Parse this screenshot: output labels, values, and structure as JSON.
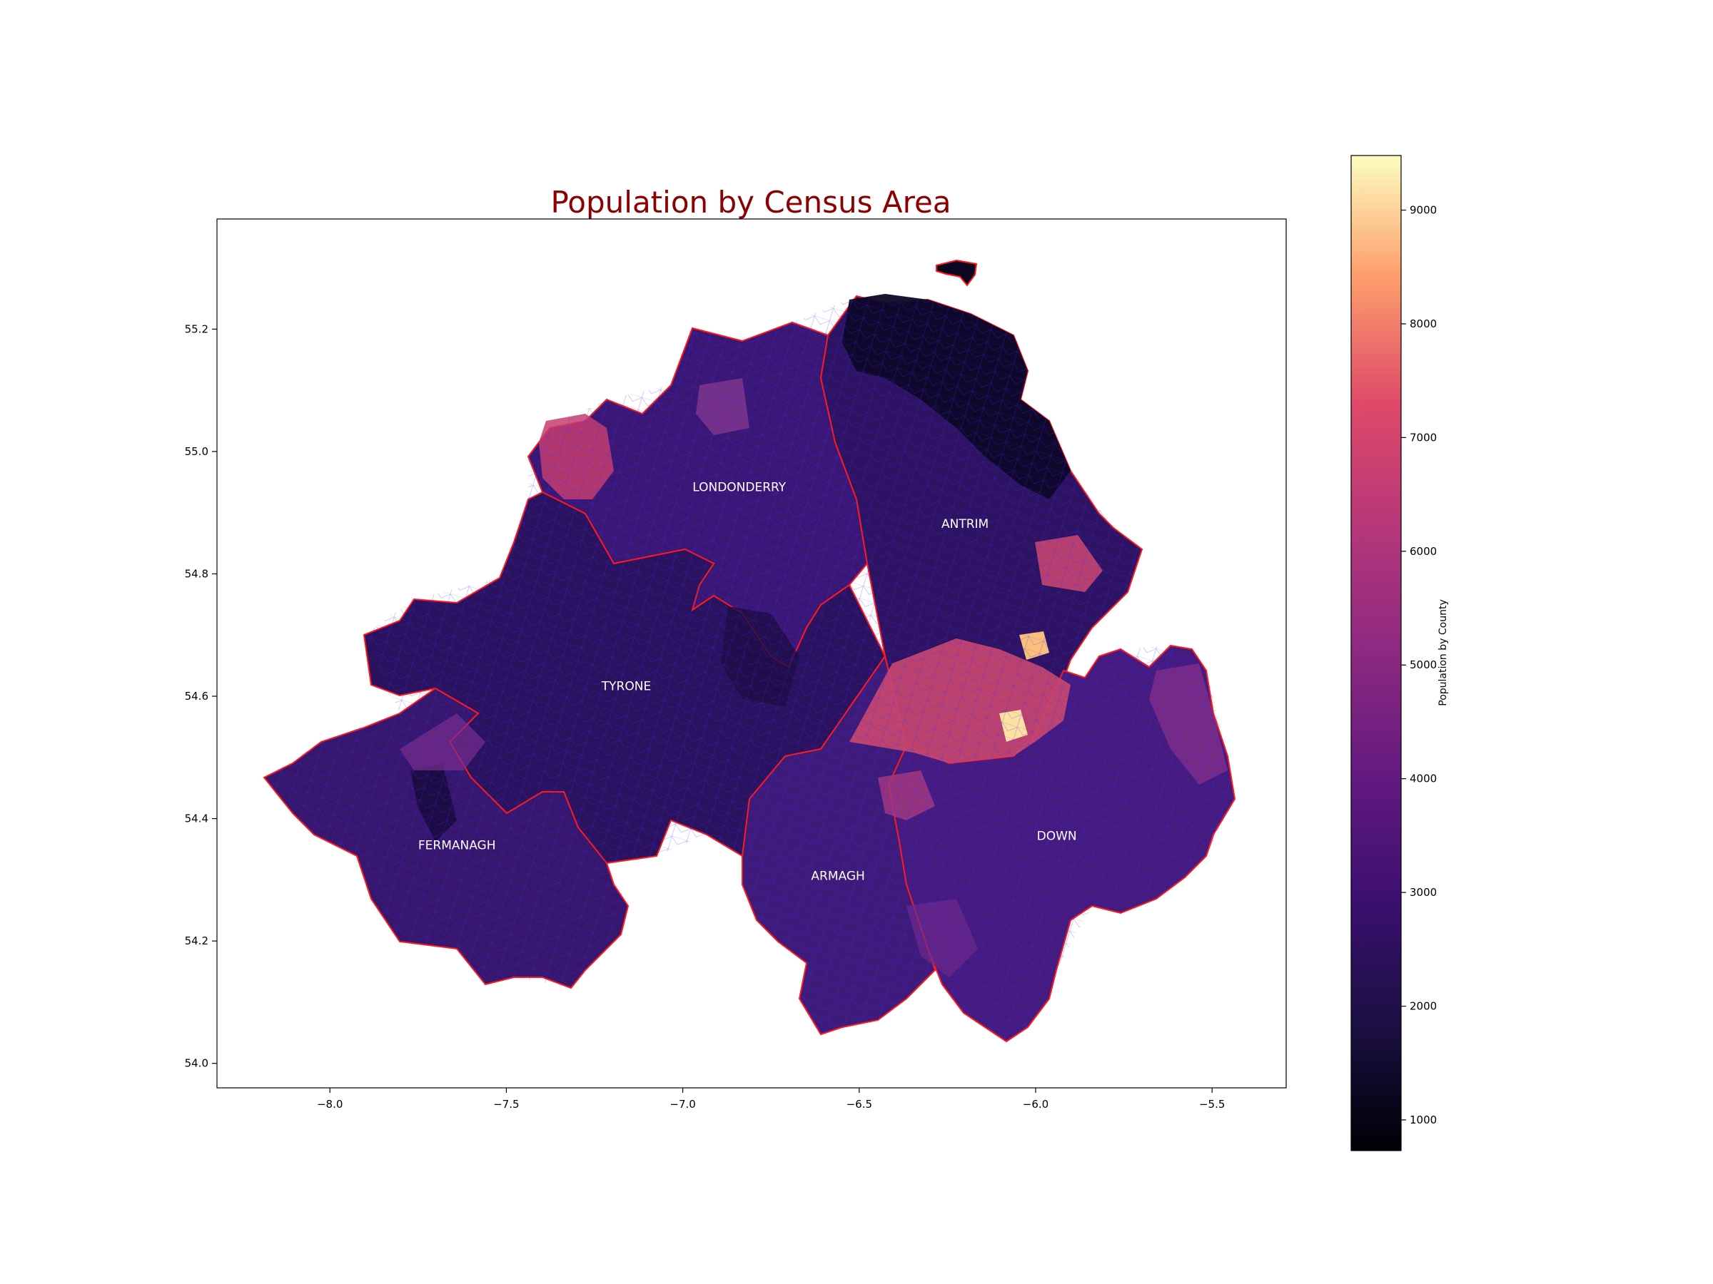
{
  "title": "Population by Census Area",
  "colors": {
    "title": "#8b0000",
    "county_border": "#ff1a1a",
    "ward_border": "#3a2cff"
  },
  "map": {
    "xlim": [
      -8.32,
      -5.29
    ],
    "ylim": [
      53.96,
      55.38
    ],
    "x_ticks": [
      "−8.0",
      "−7.5",
      "−7.0",
      "−6.5",
      "−6.0",
      "−5.5"
    ],
    "y_ticks": [
      "54.0",
      "54.2",
      "54.4",
      "54.6",
      "54.8",
      "55.0",
      "55.2"
    ],
    "counties": [
      {
        "name": "LONDONDERRY",
        "lon": -6.84,
        "lat": 54.935,
        "population": 2700
      },
      {
        "name": "ANTRIM",
        "lon": -6.2,
        "lat": 54.875,
        "population": 2600
      },
      {
        "name": "TYRONE",
        "lon": -7.16,
        "lat": 54.61,
        "population": 2500
      },
      {
        "name": "FERMANAGH",
        "lon": -7.64,
        "lat": 54.35,
        "population": 2700
      },
      {
        "name": "ARMAGH",
        "lon": -6.56,
        "lat": 54.3,
        "population": 2900
      },
      {
        "name": "DOWN",
        "lon": -5.94,
        "lat": 54.365,
        "population": 3200
      }
    ]
  },
  "colorbar": {
    "label": "Population by County",
    "min": 730,
    "max": 9480,
    "ticks": [
      "1000",
      "2000",
      "3000",
      "4000",
      "5000",
      "6000",
      "7000",
      "8000",
      "9000"
    ],
    "colormap": "magma"
  }
}
